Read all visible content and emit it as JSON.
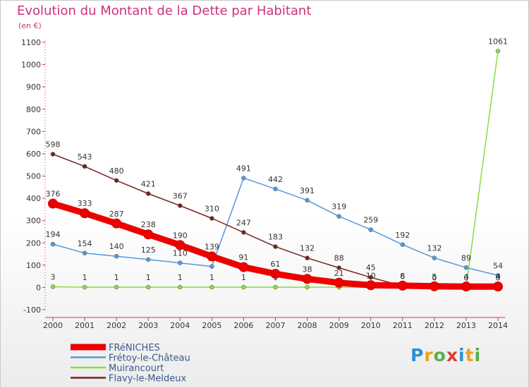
{
  "chart_data": {
    "type": "line",
    "title": "Evolution du Montant de la Dette par Habitant",
    "subtitle": "(en €)",
    "x": [
      "2000",
      "2001",
      "2002",
      "2003",
      "2004",
      "2005",
      "2006",
      "2007",
      "2008",
      "2009",
      "2010",
      "2011",
      "2012",
      "2013",
      "2014"
    ],
    "ylim": [
      -100,
      1100
    ],
    "yticks": [
      -100,
      0,
      100,
      200,
      300,
      400,
      500,
      600,
      700,
      800,
      900,
      1000,
      1100
    ],
    "legend_position": "bottom-left",
    "grid": false,
    "series": [
      {
        "name": "FRéNICHES",
        "color": "#ee0000",
        "values": [
          376,
          333,
          287,
          238,
          190,
          139,
          91,
          61,
          38,
          21,
          10,
          8,
          5,
          4,
          4
        ],
        "labels": [
          "376",
          "333",
          "287",
          "238",
          "190",
          "139",
          "91",
          "61",
          "38",
          "21",
          "10",
          "8",
          "5",
          "4",
          "4"
        ]
      },
      {
        "name": "Frétoy-le-Château",
        "color": "#5599dd",
        "values": [
          194,
          154,
          140,
          125,
          110,
          94,
          491,
          442,
          391,
          319,
          259,
          192,
          132,
          89,
          54
        ],
        "labels": [
          "194",
          "154",
          "140",
          "125",
          "110",
          "",
          "491",
          "442",
          "391",
          "319",
          "259",
          "192",
          "132",
          "89",
          "54"
        ]
      },
      {
        "name": "Muirancourt",
        "color": "#88dd44",
        "values": [
          3,
          1,
          1,
          1,
          1,
          1,
          1,
          1,
          1,
          1,
          1,
          1,
          1,
          1,
          1061
        ],
        "labels": [
          "3",
          "1",
          "1",
          "1",
          "1",
          "1",
          "1",
          "1",
          "",
          "",
          "",
          "",
          "",
          "",
          "1061"
        ]
      },
      {
        "name": "Flavy-le-Meldeux",
        "color": "#772222",
        "values": [
          598,
          543,
          480,
          421,
          367,
          310,
          247,
          183,
          132,
          88,
          45,
          6,
          0,
          0,
          0
        ],
        "labels": [
          "598",
          "543",
          "480",
          "421",
          "367",
          "310",
          "247",
          "183",
          "132",
          "88",
          "45",
          "6",
          "0",
          "0",
          "0"
        ]
      }
    ]
  },
  "logo": [
    "P",
    "r",
    "o",
    "x",
    "i",
    "t",
    "i"
  ]
}
